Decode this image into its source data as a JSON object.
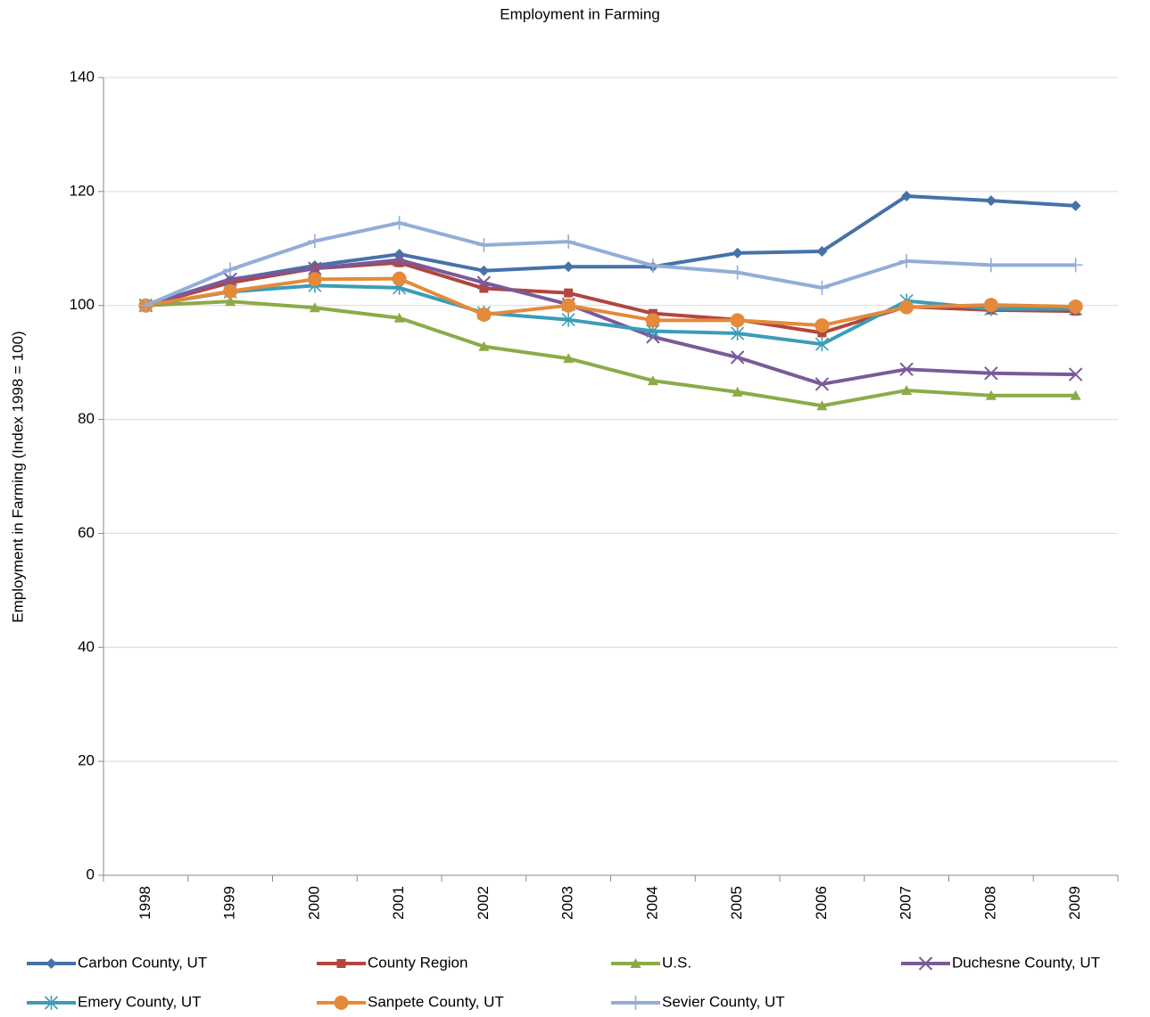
{
  "chart_data": {
    "type": "line",
    "title": "Employment in Farming",
    "y_label": "Employment in Farming (Index 1998 = 100)",
    "categories": [
      "1998",
      "1999",
      "2000",
      "2001",
      "2002",
      "2003",
      "2004",
      "2005",
      "2006",
      "2007",
      "2008",
      "2009"
    ],
    "ylim": [
      0,
      140
    ],
    "yticks": [
      0,
      20,
      40,
      60,
      80,
      100,
      120,
      140
    ],
    "grid": true,
    "legend": "bottom",
    "series": [
      {
        "name": "Carbon County, UT",
        "color": "#4672a8",
        "marker": "diamond",
        "values": [
          100,
          104.5,
          107,
          109,
          106.1,
          106.8,
          106.8,
          109.2,
          109.5,
          119.2,
          118.4,
          117.5
        ]
      },
      {
        "name": "County Region",
        "color": "#b1463f",
        "marker": "square",
        "values": [
          100,
          104,
          106.5,
          107.5,
          103,
          102.2,
          98.6,
          97.5,
          95.2,
          99.8,
          99.2,
          99
        ]
      },
      {
        "name": "U.S.",
        "color": "#8bab48",
        "marker": "triangle",
        "values": [
          100,
          100.7,
          99.6,
          97.8,
          92.8,
          90.7,
          86.8,
          84.8,
          82.4,
          85.1,
          84.2,
          84.2
        ]
      },
      {
        "name": "Duchesne County, UT",
        "color": "#7a5a98",
        "marker": "x",
        "values": [
          100,
          104.6,
          106.5,
          108,
          104,
          100.2,
          94.5,
          90.9,
          86.2,
          88.8,
          88.1,
          87.9
        ]
      },
      {
        "name": "Emery County, UT",
        "color": "#3b9db7",
        "marker": "star",
        "values": [
          100,
          102.4,
          103.5,
          103.1,
          98.7,
          97.5,
          95.5,
          95.1,
          93.2,
          100.8,
          99.4,
          99.4
        ]
      },
      {
        "name": "Sanpete County, UT",
        "color": "#e48a3a",
        "marker": "circle",
        "values": [
          100,
          102.5,
          104.6,
          104.7,
          98.4,
          100,
          97.4,
          97.4,
          96.5,
          99.7,
          100.1,
          99.8
        ]
      },
      {
        "name": "Sevier County, UT",
        "color": "#93add6",
        "marker": "plus",
        "values": [
          100,
          106.3,
          111.3,
          114.5,
          110.6,
          111.2,
          107,
          105.8,
          103.1,
          107.8,
          107.1,
          107.1
        ]
      }
    ]
  }
}
